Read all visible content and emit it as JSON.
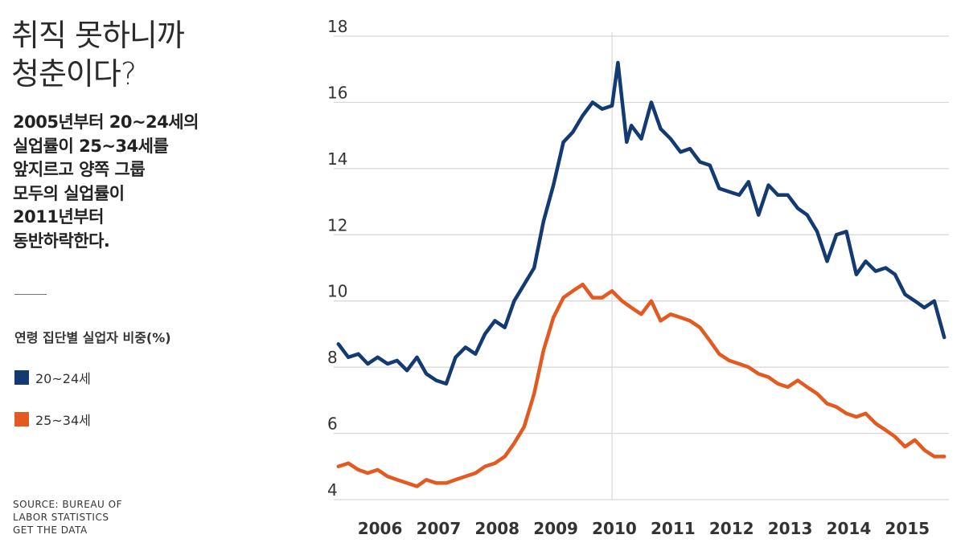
{
  "title": "취직 못하니까\n청춘이다?",
  "subtitle": "2005년부터 20~24세의\n실업률이 25~34세를\n앞지르고 양쪽 그룹\n모두의 실업률이\n2011년부터\n동반하락한다.",
  "legend": {
    "title": "연령 집단별 실업자 비중(%)",
    "items": [
      {
        "label": "20~24세",
        "color": "#133a72"
      },
      {
        "label": "25~34세",
        "color": "#e3591f"
      }
    ]
  },
  "source": {
    "line1": "SOURCE: BUREAU OF",
    "line2": "LABOR STATISTICS",
    "link": "GET THE DATA"
  },
  "chart_data": {
    "type": "line",
    "xlabel": "",
    "ylabel": "",
    "ylim": [
      4,
      18
    ],
    "xlim": [
      2005.25,
      2015.75
    ],
    "yticks": [
      "4",
      "6",
      "8",
      "10",
      "12",
      "14",
      "16",
      "18"
    ],
    "xticks": [
      "2006",
      "2007",
      "2008",
      "2009",
      "2010",
      "2011",
      "2012",
      "2013",
      "2014",
      "2015"
    ],
    "grid": "horizontal",
    "series": [
      {
        "name": "20~24세",
        "color": "#133a72",
        "x": [
          2005.33,
          2005.5,
          2005.67,
          2005.83,
          2006.0,
          2006.17,
          2006.33,
          2006.5,
          2006.67,
          2006.83,
          2007.0,
          2007.17,
          2007.33,
          2007.5,
          2007.67,
          2007.83,
          2008.0,
          2008.17,
          2008.33,
          2008.5,
          2008.67,
          2008.83,
          2009.0,
          2009.17,
          2009.33,
          2009.5,
          2009.67,
          2009.83,
          2010.0,
          2010.1,
          2010.25,
          2010.33,
          2010.5,
          2010.67,
          2010.83,
          2011.0,
          2011.17,
          2011.33,
          2011.5,
          2011.67,
          2011.83,
          2012.0,
          2012.17,
          2012.33,
          2012.5,
          2012.67,
          2012.83,
          2013.0,
          2013.17,
          2013.33,
          2013.5,
          2013.67,
          2013.83,
          2014.0,
          2014.17,
          2014.33,
          2014.5,
          2014.67,
          2014.83,
          2015.0,
          2015.17,
          2015.33,
          2015.5,
          2015.67
        ],
        "values": [
          8.7,
          8.3,
          8.4,
          8.1,
          8.3,
          8.1,
          8.2,
          7.9,
          8.3,
          7.8,
          7.6,
          7.5,
          8.3,
          8.6,
          8.4,
          9.0,
          9.4,
          9.2,
          10.0,
          10.5,
          11.0,
          12.4,
          13.5,
          14.8,
          15.1,
          15.6,
          16.0,
          15.8,
          15.9,
          17.2,
          14.8,
          15.3,
          14.9,
          16.0,
          15.2,
          14.9,
          14.5,
          14.6,
          14.2,
          14.1,
          13.4,
          13.3,
          13.2,
          13.6,
          12.6,
          13.5,
          13.2,
          13.2,
          12.8,
          12.6,
          12.1,
          11.2,
          12.0,
          12.1,
          10.8,
          11.2,
          10.9,
          11.0,
          10.8,
          10.2,
          10.0,
          9.8,
          10.0,
          8.9
        ]
      },
      {
        "name": "25~34세",
        "color": "#e3591f",
        "x": [
          2005.33,
          2005.5,
          2005.67,
          2005.83,
          2006.0,
          2006.17,
          2006.33,
          2006.5,
          2006.67,
          2006.83,
          2007.0,
          2007.17,
          2007.33,
          2007.5,
          2007.67,
          2007.83,
          2008.0,
          2008.17,
          2008.33,
          2008.5,
          2008.67,
          2008.83,
          2009.0,
          2009.17,
          2009.33,
          2009.5,
          2009.67,
          2009.83,
          2010.0,
          2010.17,
          2010.33,
          2010.5,
          2010.67,
          2010.83,
          2011.0,
          2011.17,
          2011.33,
          2011.5,
          2011.67,
          2011.83,
          2012.0,
          2012.17,
          2012.33,
          2012.5,
          2012.67,
          2012.83,
          2013.0,
          2013.17,
          2013.33,
          2013.5,
          2013.67,
          2013.83,
          2014.0,
          2014.17,
          2014.33,
          2014.5,
          2014.67,
          2014.83,
          2015.0,
          2015.17,
          2015.33,
          2015.5,
          2015.67
        ],
        "values": [
          5.0,
          5.1,
          4.9,
          4.8,
          4.9,
          4.7,
          4.6,
          4.5,
          4.4,
          4.6,
          4.5,
          4.5,
          4.6,
          4.7,
          4.8,
          5.0,
          5.1,
          5.3,
          5.7,
          6.2,
          7.2,
          8.5,
          9.5,
          10.1,
          10.3,
          10.5,
          10.1,
          10.1,
          10.3,
          10.0,
          9.8,
          9.6,
          10.0,
          9.4,
          9.6,
          9.5,
          9.4,
          9.2,
          8.8,
          8.4,
          8.2,
          8.1,
          8.0,
          7.8,
          7.7,
          7.5,
          7.4,
          7.6,
          7.4,
          7.2,
          6.9,
          6.8,
          6.6,
          6.5,
          6.6,
          6.3,
          6.1,
          5.9,
          5.6,
          5.8,
          5.5,
          5.3,
          5.3
        ]
      }
    ]
  }
}
